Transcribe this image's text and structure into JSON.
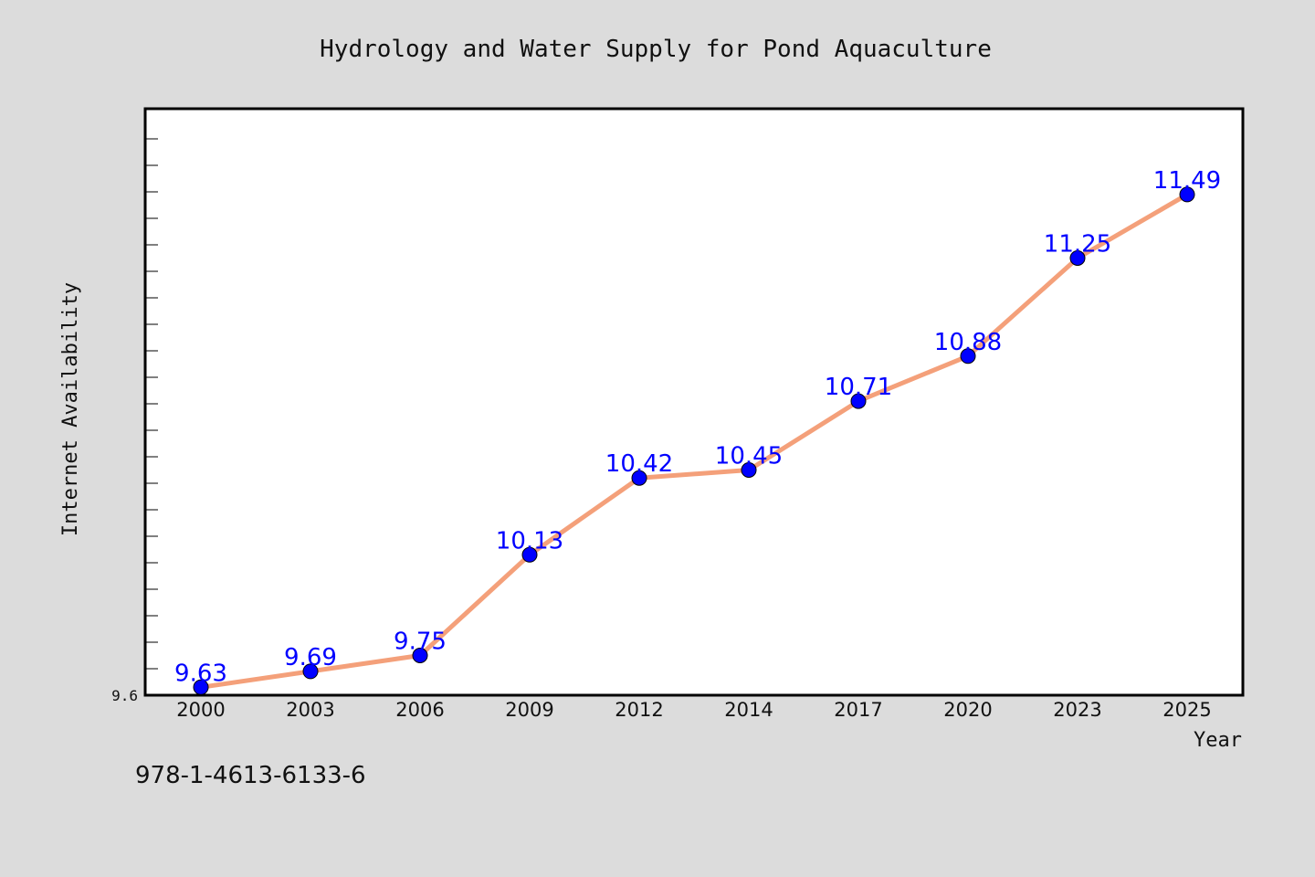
{
  "chart_data": {
    "type": "line",
    "title": "Hydrology and Water Supply for Pond Aquaculture",
    "xlabel": "Year",
    "ylabel": "Internet Availability",
    "categories": [
      "2000",
      "2003",
      "2006",
      "2009",
      "2012",
      "2014",
      "2017",
      "2020",
      "2023",
      "2025"
    ],
    "series": [
      {
        "values": [
          9.63,
          9.69,
          9.75,
          10.13,
          10.42,
          10.45,
          10.71,
          10.88,
          11.25,
          11.49
        ]
      }
    ],
    "data_labels": [
      "9.63",
      "9.69",
      "9.75",
      "10.13",
      "10.42",
      "10.45",
      "10.71",
      "10.88",
      "11.25",
      "11.49"
    ],
    "ylim": [
      9.6,
      11.8
    ],
    "yticklabels": [
      "9.6"
    ],
    "grid": false,
    "line_color": "#f4a07a",
    "marker_color": "#0000ff",
    "label_color": "#0000ff",
    "plot_background": "#ffffff",
    "figure_background": "#dcdcdc"
  },
  "footnote": "978-1-4613-6133-6"
}
